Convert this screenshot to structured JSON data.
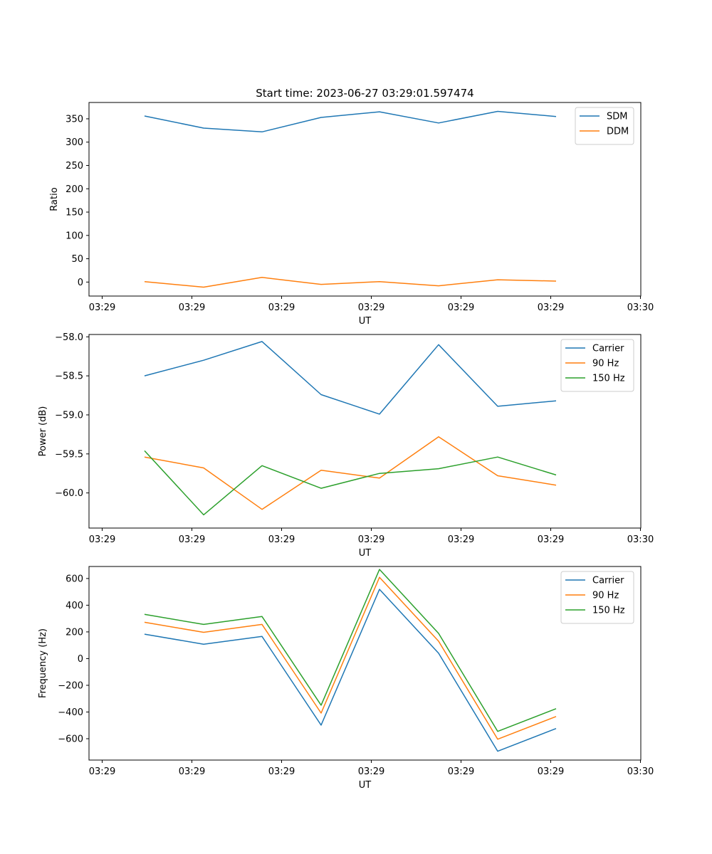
{
  "title": "Start time: 2023-06-27 03:29:01.597474",
  "colors": {
    "blue": "#1f77b4",
    "orange": "#ff7f0e",
    "green": "#2ca02c"
  },
  "chart_data": [
    {
      "type": "line",
      "x_tick_labels": [
        "03:29",
        "03:29",
        "03:29",
        "03:29",
        "03:29",
        "03:29",
        "03:30"
      ],
      "xlabel": "UT",
      "ylabel": "Ratio",
      "ylim": [
        -30,
        385
      ],
      "y_ticks": [
        0,
        50,
        100,
        150,
        200,
        250,
        300,
        350
      ],
      "y_tick_labels": [
        "0",
        "50",
        "100",
        "150",
        "200",
        "250",
        "300",
        "350"
      ],
      "legend_position": "top-right",
      "series": [
        {
          "name": "SDM",
          "color": "#1f77b4",
          "values": [
            356,
            330,
            322,
            353,
            365,
            341,
            366,
            355
          ]
        },
        {
          "name": "DDM",
          "color": "#ff7f0e",
          "values": [
            1,
            -11,
            10,
            -5,
            1,
            -8,
            5,
            2
          ]
        }
      ]
    },
    {
      "type": "line",
      "x_tick_labels": [
        "03:29",
        "03:29",
        "03:29",
        "03:29",
        "03:29",
        "03:29",
        "03:30"
      ],
      "xlabel": "UT",
      "ylabel": "Power (dB)",
      "ylim": [
        -60.45,
        -57.97
      ],
      "y_ticks": [
        -58.0,
        -58.5,
        -59.0,
        -59.5,
        -60.0
      ],
      "y_tick_labels": [
        "−58.0",
        "−58.5",
        "−59.0",
        "−59.5",
        "−60.0"
      ],
      "legend_position": "top-right",
      "series": [
        {
          "name": "Carrier",
          "color": "#1f77b4",
          "values": [
            -58.5,
            -58.3,
            -58.06,
            -58.74,
            -58.99,
            -58.1,
            -58.89,
            -58.82
          ]
        },
        {
          "name": "90 Hz",
          "color": "#ff7f0e",
          "values": [
            -59.54,
            -59.68,
            -60.21,
            -59.71,
            -59.81,
            -59.28,
            -59.78,
            -59.9
          ]
        },
        {
          "name": "150 Hz",
          "color": "#2ca02c",
          "values": [
            -59.46,
            -60.28,
            -59.65,
            -59.94,
            -59.75,
            -59.69,
            -59.54,
            -59.77
          ]
        }
      ]
    },
    {
      "type": "line",
      "x_tick_labels": [
        "03:29",
        "03:29",
        "03:29",
        "03:29",
        "03:29",
        "03:29",
        "03:30"
      ],
      "xlabel": "UT",
      "ylabel": "Frequency (Hz)",
      "ylim": [
        -760,
        690
      ],
      "y_ticks": [
        600,
        400,
        200,
        0,
        -200,
        -400,
        -600
      ],
      "y_tick_labels": [
        "600",
        "400",
        "200",
        "0",
        "−200",
        "−400",
        "−600"
      ],
      "legend_position": "top-right",
      "series": [
        {
          "name": "Carrier",
          "color": "#1f77b4",
          "values": [
            183,
            108,
            166,
            -498,
            519,
            40,
            -694,
            -524
          ]
        },
        {
          "name": "90 Hz",
          "color": "#ff7f0e",
          "values": [
            272,
            197,
            256,
            -408,
            609,
            130,
            -604,
            -434
          ]
        },
        {
          "name": "150 Hz",
          "color": "#2ca02c",
          "values": [
            331,
            256,
            315,
            -349,
            668,
            189,
            -545,
            -375
          ]
        }
      ]
    }
  ]
}
